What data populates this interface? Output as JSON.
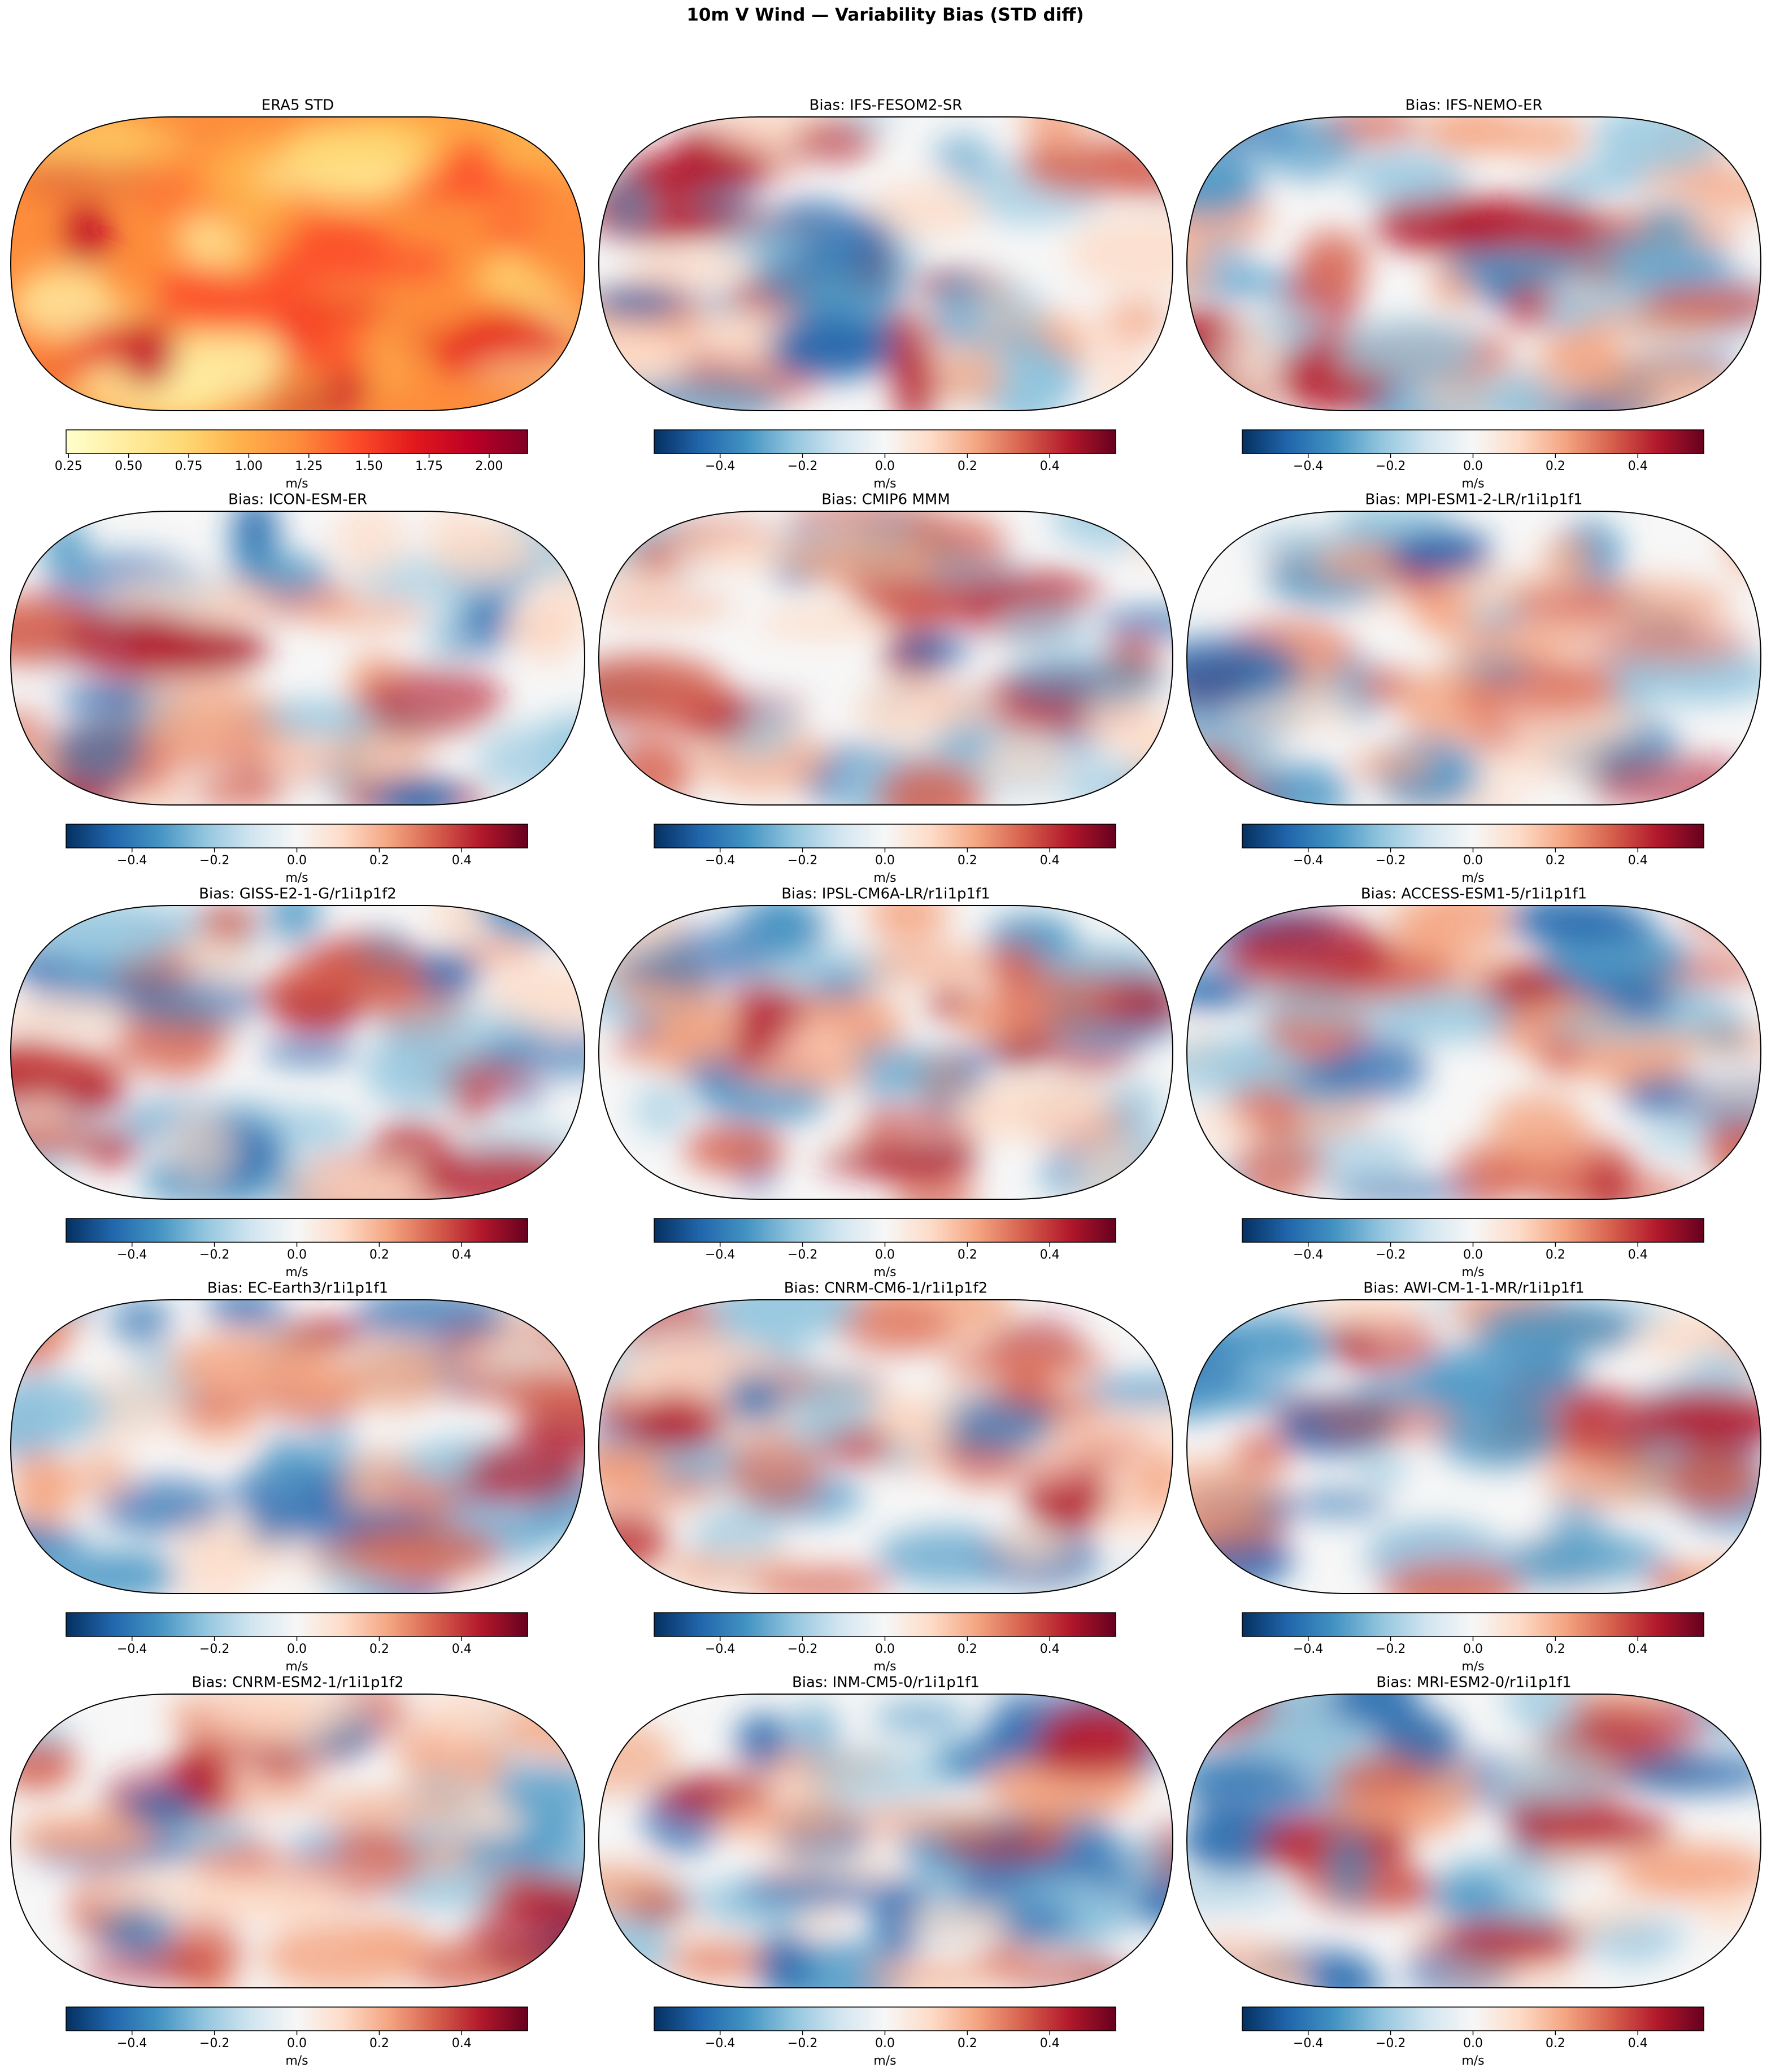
{
  "title": "10m V Wind — Variability Bias (STD diff)",
  "chart_data": [
    {
      "type": "colormap",
      "title": "ERA5 STD",
      "xlabel": "m/s",
      "xlim": [
        0.24,
        2.16
      ],
      "xticks": [
        0.25,
        {
          "value": 0.5,
          "label": "0.50"
        },
        0.75,
        {
          "value": 1,
          "label": "1.00"
        },
        1.25,
        {
          "value": 1.5,
          "label": "1.50"
        },
        1.75,
        {
          "value": 2,
          "label": "2.00"
        }
      ],
      "colors": [
        "#ffffcc",
        "#ffeda0",
        "#fed976",
        "#feb24c",
        "#fd8d3c",
        "#fc4e2a",
        "#e31a1c",
        "#bd0026",
        "#800026"
      ]
    },
    {
      "type": "colormap",
      "title": "Bias: IFS-FESOM2-SR",
      "xlabel": "m/s",
      "xlim": [
        -0.56,
        0.56
      ],
      "xticks": [
        {
          "value": -0.4,
          "label": "−0.4"
        },
        {
          "value": -0.2,
          "label": "−0.2"
        },
        {
          "value": 0,
          "label": "0.0"
        },
        0.2,
        0.4
      ],
      "colors": [
        "#053061",
        "#2166ac",
        "#4393c3",
        "#92c5de",
        "#d1e5f0",
        "#f7f7f7",
        "#fddbc7",
        "#f4a582",
        "#d6604d",
        "#b2182b",
        "#67001f"
      ]
    },
    {
      "type": "colormap",
      "title": "Bias: IFS-NEMO-ER",
      "xlabel": "m/s",
      "xlim": [
        -0.56,
        0.56
      ],
      "xticks": [
        {
          "value": -0.4,
          "label": "−0.4"
        },
        {
          "value": -0.2,
          "label": "−0.2"
        },
        {
          "value": 0,
          "label": "0.0"
        },
        0.2,
        0.4
      ],
      "colors": [
        "#053061",
        "#2166ac",
        "#4393c3",
        "#92c5de",
        "#d1e5f0",
        "#f7f7f7",
        "#fddbc7",
        "#f4a582",
        "#d6604d",
        "#b2182b",
        "#67001f"
      ]
    },
    {
      "type": "colormap",
      "title": "Bias: ICON-ESM-ER",
      "xlabel": "m/s",
      "xlim": [
        -0.56,
        0.56
      ],
      "xticks": [
        {
          "value": -0.4,
          "label": "−0.4"
        },
        {
          "value": -0.2,
          "label": "−0.2"
        },
        {
          "value": 0,
          "label": "0.0"
        },
        0.2,
        0.4
      ],
      "colors": [
        "#053061",
        "#2166ac",
        "#4393c3",
        "#92c5de",
        "#d1e5f0",
        "#f7f7f7",
        "#fddbc7",
        "#f4a582",
        "#d6604d",
        "#b2182b",
        "#67001f"
      ]
    },
    {
      "type": "colormap",
      "title": "Bias: CMIP6 MMM",
      "xlabel": "m/s",
      "xlim": [
        -0.56,
        0.56
      ],
      "xticks": [
        {
          "value": -0.4,
          "label": "−0.4"
        },
        {
          "value": -0.2,
          "label": "−0.2"
        },
        {
          "value": 0,
          "label": "0.0"
        },
        0.2,
        0.4
      ],
      "colors": [
        "#053061",
        "#2166ac",
        "#4393c3",
        "#92c5de",
        "#d1e5f0",
        "#f7f7f7",
        "#fddbc7",
        "#f4a582",
        "#d6604d",
        "#b2182b",
        "#67001f"
      ]
    },
    {
      "type": "colormap",
      "title": "Bias: MPI-ESM1-2-LR/r1i1p1f1",
      "xlabel": "m/s",
      "xlim": [
        -0.56,
        0.56
      ],
      "xticks": [
        {
          "value": -0.4,
          "label": "−0.4"
        },
        {
          "value": -0.2,
          "label": "−0.2"
        },
        {
          "value": 0,
          "label": "0.0"
        },
        0.2,
        0.4
      ],
      "colors": [
        "#053061",
        "#2166ac",
        "#4393c3",
        "#92c5de",
        "#d1e5f0",
        "#f7f7f7",
        "#fddbc7",
        "#f4a582",
        "#d6604d",
        "#b2182b",
        "#67001f"
      ]
    },
    {
      "type": "colormap",
      "title": "Bias: GISS-E2-1-G/r1i1p1f2",
      "xlabel": "m/s",
      "xlim": [
        -0.56,
        0.56
      ],
      "xticks": [
        {
          "value": -0.4,
          "label": "−0.4"
        },
        {
          "value": -0.2,
          "label": "−0.2"
        },
        {
          "value": 0,
          "label": "0.0"
        },
        0.2,
        0.4
      ],
      "colors": [
        "#053061",
        "#2166ac",
        "#4393c3",
        "#92c5de",
        "#d1e5f0",
        "#f7f7f7",
        "#fddbc7",
        "#f4a582",
        "#d6604d",
        "#b2182b",
        "#67001f"
      ]
    },
    {
      "type": "colormap",
      "title": "Bias: IPSL-CM6A-LR/r1i1p1f1",
      "xlabel": "m/s",
      "xlim": [
        -0.56,
        0.56
      ],
      "xticks": [
        {
          "value": -0.4,
          "label": "−0.4"
        },
        {
          "value": -0.2,
          "label": "−0.2"
        },
        {
          "value": 0,
          "label": "0.0"
        },
        0.2,
        0.4
      ],
      "colors": [
        "#053061",
        "#2166ac",
        "#4393c3",
        "#92c5de",
        "#d1e5f0",
        "#f7f7f7",
        "#fddbc7",
        "#f4a582",
        "#d6604d",
        "#b2182b",
        "#67001f"
      ]
    },
    {
      "type": "colormap",
      "title": "Bias: ACCESS-ESM1-5/r1i1p1f1",
      "xlabel": "m/s",
      "xlim": [
        -0.56,
        0.56
      ],
      "xticks": [
        {
          "value": -0.4,
          "label": "−0.4"
        },
        {
          "value": -0.2,
          "label": "−0.2"
        },
        {
          "value": 0,
          "label": "0.0"
        },
        0.2,
        0.4
      ],
      "colors": [
        "#053061",
        "#2166ac",
        "#4393c3",
        "#92c5de",
        "#d1e5f0",
        "#f7f7f7",
        "#fddbc7",
        "#f4a582",
        "#d6604d",
        "#b2182b",
        "#67001f"
      ]
    },
    {
      "type": "colormap",
      "title": "Bias: EC-Earth3/r1i1p1f1",
      "xlabel": "m/s",
      "xlim": [
        -0.56,
        0.56
      ],
      "xticks": [
        {
          "value": -0.4,
          "label": "−0.4"
        },
        {
          "value": -0.2,
          "label": "−0.2"
        },
        {
          "value": 0,
          "label": "0.0"
        },
        0.2,
        0.4
      ],
      "colors": [
        "#053061",
        "#2166ac",
        "#4393c3",
        "#92c5de",
        "#d1e5f0",
        "#f7f7f7",
        "#fddbc7",
        "#f4a582",
        "#d6604d",
        "#b2182b",
        "#67001f"
      ]
    },
    {
      "type": "colormap",
      "title": "Bias: CNRM-CM6-1/r1i1p1f2",
      "xlabel": "m/s",
      "xlim": [
        -0.56,
        0.56
      ],
      "xticks": [
        {
          "value": -0.4,
          "label": "−0.4"
        },
        {
          "value": -0.2,
          "label": "−0.2"
        },
        {
          "value": 0,
          "label": "0.0"
        },
        0.2,
        0.4
      ],
      "colors": [
        "#053061",
        "#2166ac",
        "#4393c3",
        "#92c5de",
        "#d1e5f0",
        "#f7f7f7",
        "#fddbc7",
        "#f4a582",
        "#d6604d",
        "#b2182b",
        "#67001f"
      ]
    },
    {
      "type": "colormap",
      "title": "Bias: AWI-CM-1-1-MR/r1i1p1f1",
      "xlabel": "m/s",
      "xlim": [
        -0.56,
        0.56
      ],
      "xticks": [
        {
          "value": -0.4,
          "label": "−0.4"
        },
        {
          "value": -0.2,
          "label": "−0.2"
        },
        {
          "value": 0,
          "label": "0.0"
        },
        0.2,
        0.4
      ],
      "colors": [
        "#053061",
        "#2166ac",
        "#4393c3",
        "#92c5de",
        "#d1e5f0",
        "#f7f7f7",
        "#fddbc7",
        "#f4a582",
        "#d6604d",
        "#b2182b",
        "#67001f"
      ]
    },
    {
      "type": "colormap",
      "title": "Bias: CNRM-ESM2-1/r1i1p1f2",
      "xlabel": "m/s",
      "xlim": [
        -0.56,
        0.56
      ],
      "xticks": [
        {
          "value": -0.4,
          "label": "−0.4"
        },
        {
          "value": -0.2,
          "label": "−0.2"
        },
        {
          "value": 0,
          "label": "0.0"
        },
        0.2,
        0.4
      ],
      "colors": [
        "#053061",
        "#2166ac",
        "#4393c3",
        "#92c5de",
        "#d1e5f0",
        "#f7f7f7",
        "#fddbc7",
        "#f4a582",
        "#d6604d",
        "#b2182b",
        "#67001f"
      ]
    },
    {
      "type": "colormap",
      "title": "Bias: INM-CM5-0/r1i1p1f1",
      "xlabel": "m/s",
      "xlim": [
        -0.56,
        0.56
      ],
      "xticks": [
        {
          "value": -0.4,
          "label": "−0.4"
        },
        {
          "value": -0.2,
          "label": "−0.2"
        },
        {
          "value": 0,
          "label": "0.0"
        },
        0.2,
        0.4
      ],
      "colors": [
        "#053061",
        "#2166ac",
        "#4393c3",
        "#92c5de",
        "#d1e5f0",
        "#f7f7f7",
        "#fddbc7",
        "#f4a582",
        "#d6604d",
        "#b2182b",
        "#67001f"
      ]
    },
    {
      "type": "colormap",
      "title": "Bias: MRI-ESM2-0/r1i1p1f1",
      "xlabel": "m/s",
      "xlim": [
        -0.56,
        0.56
      ],
      "xticks": [
        {
          "value": -0.4,
          "label": "−0.4"
        },
        {
          "value": -0.2,
          "label": "−0.2"
        },
        {
          "value": 0,
          "label": "0.0"
        },
        0.2,
        0.4
      ],
      "colors": [
        "#053061",
        "#2166ac",
        "#4393c3",
        "#92c5de",
        "#d1e5f0",
        "#f7f7f7",
        "#fddbc7",
        "#f4a582",
        "#d6604d",
        "#b2182b",
        "#67001f"
      ]
    }
  ]
}
